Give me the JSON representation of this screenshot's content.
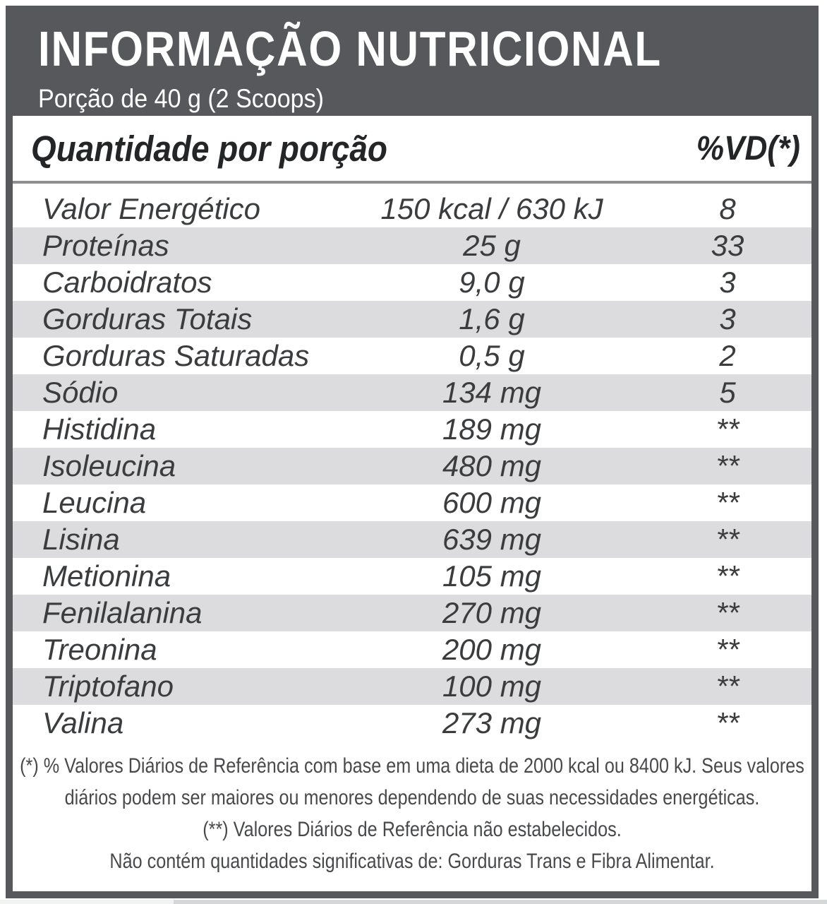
{
  "label": {
    "title": "INFORMAÇÃO NUTRICIONAL",
    "serving": "Porção de 40 g (2 Scoops)",
    "columns": {
      "amount_header": "Quantidade por porção",
      "dv_header": "%VD(*)"
    },
    "rows": [
      {
        "name": "Valor Energético",
        "amount": "150 kcal / 630 kJ",
        "dv": "8"
      },
      {
        "name": "Proteínas",
        "amount": "25 g",
        "dv": "33"
      },
      {
        "name": "Carboidratos",
        "amount": "9,0 g",
        "dv": "3"
      },
      {
        "name": "Gorduras Totais",
        "amount": "1,6 g",
        "dv": "3"
      },
      {
        "name": "Gorduras Saturadas",
        "amount": "0,5 g",
        "dv": "2"
      },
      {
        "name": "Sódio",
        "amount": "134 mg",
        "dv": "5"
      },
      {
        "name": "Histidina",
        "amount": "189 mg",
        "dv": "**"
      },
      {
        "name": "Isoleucina",
        "amount": "480 mg",
        "dv": "**"
      },
      {
        "name": "Leucina",
        "amount": "600 mg",
        "dv": "**"
      },
      {
        "name": "Lisina",
        "amount": "639 mg",
        "dv": "**"
      },
      {
        "name": "Metionina",
        "amount": "105 mg",
        "dv": "**"
      },
      {
        "name": "Fenilalanina",
        "amount": "270 mg",
        "dv": "**"
      },
      {
        "name": "Treonina",
        "amount": "200 mg",
        "dv": "**"
      },
      {
        "name": "Triptofano",
        "amount": "100 mg",
        "dv": "**"
      },
      {
        "name": "Valina",
        "amount": "273 mg",
        "dv": "**"
      }
    ],
    "footnotes": [
      "(*) % Valores Diários de Referência com base em uma dieta de 2000 kcal ou 8400 kJ. Seus valores diários podem ser maiores ou menores dependendo de suas necessidades energéticas.",
      "(**) Valores Diários de Referência não estabelecidos.",
      "Não contém quantidades significativas de: Gorduras Trans e Fibra Alimentar."
    ],
    "colors": {
      "header_bg": "#56585b",
      "border": "#56585b",
      "row_alt_bg": "#dcdcde",
      "separator": "#8e8f91",
      "text": "#3a3c3e",
      "footnote_text": "#48494b",
      "strip_left": "#f1f2f2",
      "strip_right": "#d5d6d7"
    }
  }
}
